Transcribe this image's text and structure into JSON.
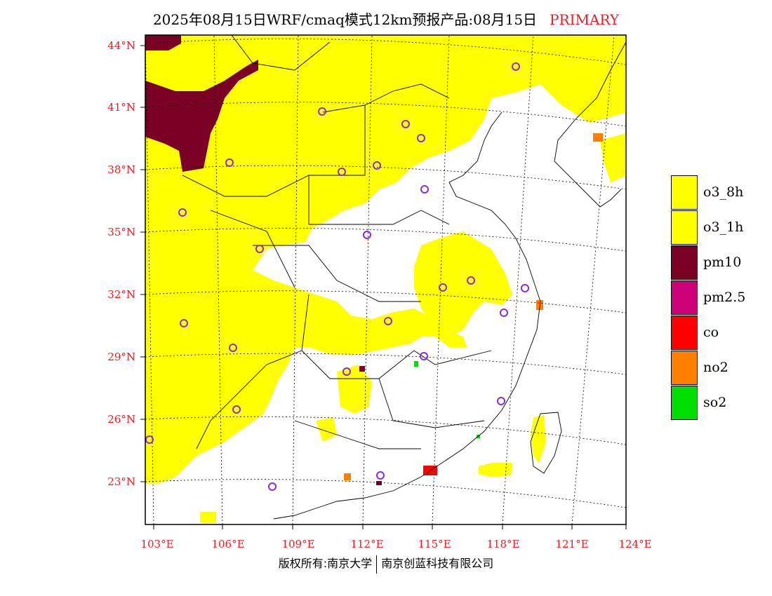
{
  "header": {
    "title": "2025年08月15日WRF/cmaq模式12km预报产品:08月15日",
    "tag": "PRIMARY"
  },
  "axes": {
    "lat_labels": [
      "44°N",
      "41°N",
      "38°N",
      "35°N",
      "32°N",
      "29°N",
      "26°N",
      "23°N"
    ],
    "lon_labels": [
      "103°E",
      "106°E",
      "109°E",
      "112°E",
      "115°E",
      "118°E",
      "121°E",
      "124°E"
    ]
  },
  "legend": [
    {
      "label": "o3_8h",
      "color": "#ffff00"
    },
    {
      "label": "o3_1h",
      "color": "#ffff00"
    },
    {
      "label": "pm10",
      "color": "#7a0026"
    },
    {
      "label": "pm2.5",
      "color": "#cc0077"
    },
    {
      "label": "co",
      "color": "#ff0000"
    },
    {
      "label": "no2",
      "color": "#ff7f00"
    },
    {
      "label": "so2",
      "color": "#00dd00"
    }
  ],
  "footer": {
    "left": "版权所有:南京大学",
    "right": "南京创蓝科技有限公司"
  }
}
